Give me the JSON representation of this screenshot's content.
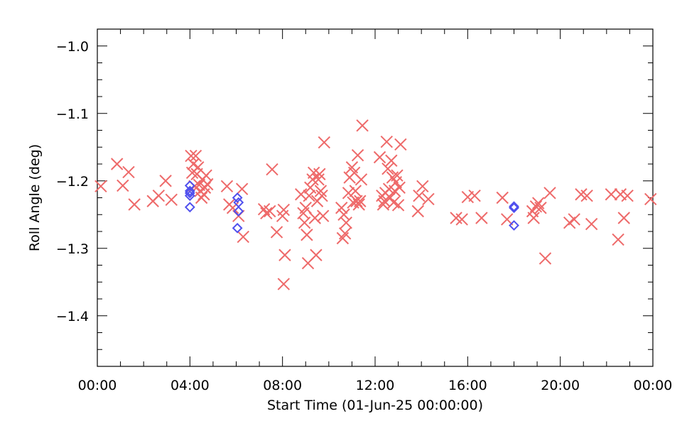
{
  "chart_data": {
    "type": "scatter",
    "title": "",
    "xlabel": "Start Time (01-Jun-25 00:00:00)",
    "ylabel": "Roll Angle (deg)",
    "xlim": [
      0,
      24
    ],
    "ylim": [
      -1.475,
      -0.975
    ],
    "x_unit": "hours",
    "xticks": [
      0,
      4,
      8,
      12,
      16,
      20,
      24
    ],
    "xtick_labels": [
      "00:00",
      "04:00",
      "08:00",
      "12:00",
      "16:00",
      "20:00",
      "00:00"
    ],
    "yticks": [
      -1.0,
      -1.1,
      -1.2,
      -1.3,
      -1.4
    ],
    "ytick_labels": [
      "−1.0",
      "−1.1",
      "−1.2",
      "−1.3",
      "−1.4"
    ],
    "x_minor_step": 1,
    "y_minor_step": 0.025,
    "grid": false,
    "legend": "none",
    "series": [
      {
        "marker": "x",
        "color": "#ee6a6a",
        "points": [
          [
            0.15,
            -1.208
          ],
          [
            0.85,
            -1.175
          ],
          [
            1.1,
            -1.207
          ],
          [
            1.35,
            -1.187
          ],
          [
            1.6,
            -1.235
          ],
          [
            2.4,
            -1.23
          ],
          [
            2.65,
            -1.222
          ],
          [
            2.95,
            -1.2
          ],
          [
            3.2,
            -1.228
          ],
          [
            4.05,
            -1.163
          ],
          [
            4.1,
            -1.188
          ],
          [
            4.15,
            -1.175
          ],
          [
            4.2,
            -1.208
          ],
          [
            4.25,
            -1.163
          ],
          [
            4.3,
            -1.19
          ],
          [
            4.35,
            -1.18
          ],
          [
            4.4,
            -1.206
          ],
          [
            4.45,
            -1.215
          ],
          [
            4.5,
            -1.225
          ],
          [
            4.55,
            -1.198
          ],
          [
            4.6,
            -1.22
          ],
          [
            4.65,
            -1.21
          ],
          [
            4.7,
            -1.192
          ],
          [
            4.75,
            -1.205
          ],
          [
            5.6,
            -1.208
          ],
          [
            5.7,
            -1.235
          ],
          [
            5.85,
            -1.24
          ],
          [
            6.1,
            -1.252
          ],
          [
            6.25,
            -1.212
          ],
          [
            6.3,
            -1.283
          ],
          [
            7.2,
            -1.242
          ],
          [
            7.3,
            -1.248
          ],
          [
            7.45,
            -1.245
          ],
          [
            7.55,
            -1.183
          ],
          [
            7.75,
            -1.276
          ],
          [
            8.0,
            -1.252
          ],
          [
            8.05,
            -1.243
          ],
          [
            8.1,
            -1.31
          ],
          [
            8.05,
            -1.353
          ],
          [
            8.8,
            -1.22
          ],
          [
            8.9,
            -1.248
          ],
          [
            8.95,
            -1.262
          ],
          [
            9.0,
            -1.24
          ],
          [
            9.05,
            -1.28
          ],
          [
            9.1,
            -1.322
          ],
          [
            9.15,
            -1.222
          ],
          [
            9.2,
            -1.21
          ],
          [
            9.3,
            -1.198
          ],
          [
            9.35,
            -1.188
          ],
          [
            9.4,
            -1.255
          ],
          [
            9.45,
            -1.31
          ],
          [
            9.5,
            -1.23
          ],
          [
            9.55,
            -1.198
          ],
          [
            9.6,
            -1.19
          ],
          [
            9.65,
            -1.215
          ],
          [
            9.7,
            -1.222
          ],
          [
            9.75,
            -1.252
          ],
          [
            9.8,
            -1.143
          ],
          [
            10.55,
            -1.24
          ],
          [
            10.6,
            -1.285
          ],
          [
            10.65,
            -1.25
          ],
          [
            10.7,
            -1.278
          ],
          [
            10.75,
            -1.262
          ],
          [
            10.85,
            -1.218
          ],
          [
            10.9,
            -1.195
          ],
          [
            11.0,
            -1.18
          ],
          [
            11.05,
            -1.232
          ],
          [
            11.1,
            -1.188
          ],
          [
            11.15,
            -1.215
          ],
          [
            11.2,
            -1.23
          ],
          [
            11.25,
            -1.162
          ],
          [
            11.3,
            -1.235
          ],
          [
            11.35,
            -1.23
          ],
          [
            11.4,
            -1.198
          ],
          [
            11.45,
            -1.118
          ],
          [
            12.2,
            -1.165
          ],
          [
            12.3,
            -1.222
          ],
          [
            12.35,
            -1.235
          ],
          [
            12.4,
            -1.23
          ],
          [
            12.45,
            -1.218
          ],
          [
            12.5,
            -1.142
          ],
          [
            12.55,
            -1.182
          ],
          [
            12.6,
            -1.212
          ],
          [
            12.65,
            -1.225
          ],
          [
            12.7,
            -1.17
          ],
          [
            12.75,
            -1.195
          ],
          [
            12.8,
            -1.232
          ],
          [
            12.85,
            -1.215
          ],
          [
            12.9,
            -1.202
          ],
          [
            12.95,
            -1.192
          ],
          [
            13.0,
            -1.236
          ],
          [
            13.05,
            -1.21
          ],
          [
            13.1,
            -1.146
          ],
          [
            13.85,
            -1.245
          ],
          [
            13.9,
            -1.222
          ],
          [
            14.05,
            -1.208
          ],
          [
            14.3,
            -1.227
          ],
          [
            15.5,
            -1.255
          ],
          [
            15.75,
            -1.257
          ],
          [
            16.0,
            -1.224
          ],
          [
            16.3,
            -1.222
          ],
          [
            16.6,
            -1.255
          ],
          [
            17.5,
            -1.225
          ],
          [
            17.7,
            -1.257
          ],
          [
            18.8,
            -1.245
          ],
          [
            18.85,
            -1.255
          ],
          [
            18.95,
            -1.238
          ],
          [
            19.05,
            -1.233
          ],
          [
            19.15,
            -1.24
          ],
          [
            19.35,
            -1.315
          ],
          [
            19.55,
            -1.218
          ],
          [
            20.4,
            -1.262
          ],
          [
            20.6,
            -1.257
          ],
          [
            20.9,
            -1.22
          ],
          [
            21.15,
            -1.222
          ],
          [
            21.35,
            -1.264
          ],
          [
            22.2,
            -1.22
          ],
          [
            22.5,
            -1.287
          ],
          [
            22.6,
            -1.22
          ],
          [
            22.75,
            -1.255
          ],
          [
            22.9,
            -1.222
          ],
          [
            23.9,
            -1.227
          ]
        ]
      },
      {
        "marker": "diamond",
        "color": "#5050ee",
        "points": [
          [
            4.0,
            -1.207
          ],
          [
            4.0,
            -1.215
          ],
          [
            4.0,
            -1.218
          ],
          [
            4.0,
            -1.222
          ],
          [
            4.0,
            -1.239
          ],
          [
            6.05,
            -1.225
          ],
          [
            6.1,
            -1.232
          ],
          [
            6.1,
            -1.245
          ],
          [
            6.05,
            -1.27
          ],
          [
            18.0,
            -1.238
          ],
          [
            18.0,
            -1.24
          ],
          [
            18.0,
            -1.266
          ]
        ]
      }
    ]
  }
}
